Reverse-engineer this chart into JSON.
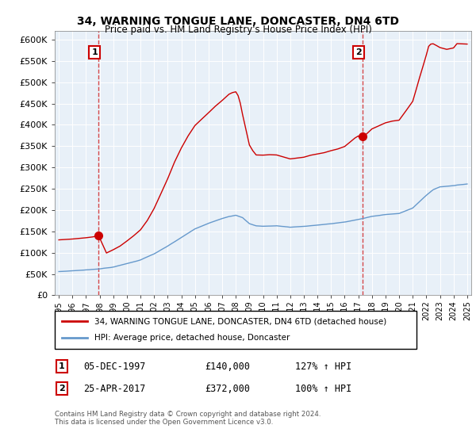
{
  "title": "34, WARNING TONGUE LANE, DONCASTER, DN4 6TD",
  "subtitle": "Price paid vs. HM Land Registry's House Price Index (HPI)",
  "legend_line1": "34, WARNING TONGUE LANE, DONCASTER, DN4 6TD (detached house)",
  "legend_line2": "HPI: Average price, detached house, Doncaster",
  "annotation1_date": "05-DEC-1997",
  "annotation1_price": "£140,000",
  "annotation1_hpi": "127% ↑ HPI",
  "annotation2_date": "25-APR-2017",
  "annotation2_price": "£372,000",
  "annotation2_hpi": "100% ↑ HPI",
  "footer": "Contains HM Land Registry data © Crown copyright and database right 2024.\nThis data is licensed under the Open Government Licence v3.0.",
  "red_color": "#cc0000",
  "blue_color": "#6699cc",
  "bg_color": "#e8f0f8",
  "ylim": [
    0,
    620000
  ],
  "yticks": [
    0,
    50000,
    100000,
    150000,
    200000,
    250000,
    300000,
    350000,
    400000,
    450000,
    500000,
    550000,
    600000
  ],
  "ytick_labels": [
    "£0",
    "£50K",
    "£100K",
    "£150K",
    "£200K",
    "£250K",
    "£300K",
    "£350K",
    "£400K",
    "£450K",
    "£500K",
    "£550K",
    "£600K"
  ],
  "sale1_x": 1997.92,
  "sale1_y": 140000,
  "sale2_x": 2017.31,
  "sale2_y": 372000,
  "xmin": 1994.7,
  "xmax": 2025.3,
  "hpi_years": [
    1995.0,
    1995.08,
    1995.17,
    1995.25,
    1995.33,
    1995.42,
    1995.5,
    1995.58,
    1995.67,
    1995.75,
    1995.83,
    1995.92,
    1996.0,
    1996.08,
    1996.17,
    1996.25,
    1996.33,
    1996.42,
    1996.5,
    1996.58,
    1996.67,
    1996.75,
    1996.83,
    1996.92,
    1997.0,
    1997.08,
    1997.17,
    1997.25,
    1997.33,
    1997.42,
    1997.5,
    1997.58,
    1997.67,
    1997.75,
    1997.83,
    1997.92,
    1998.0,
    1998.08,
    1998.17,
    1998.25,
    1998.33,
    1998.42,
    1998.5,
    1998.58,
    1998.67,
    1998.75,
    1998.83,
    1998.92,
    1999.0,
    1999.08,
    1999.17,
    1999.25,
    1999.33,
    1999.42,
    1999.5,
    1999.58,
    1999.67,
    1999.75,
    1999.83,
    1999.92,
    2000.0,
    2000.08,
    2000.17,
    2000.25,
    2000.33,
    2000.42,
    2000.5,
    2000.58,
    2000.67,
    2000.75,
    2000.83,
    2000.92,
    2001.0,
    2001.08,
    2001.17,
    2001.25,
    2001.33,
    2001.42,
    2001.5,
    2001.58,
    2001.67,
    2001.75,
    2001.83,
    2001.92,
    2002.0,
    2002.08,
    2002.17,
    2002.25,
    2002.33,
    2002.42,
    2002.5,
    2002.58,
    2002.67,
    2002.75,
    2002.83,
    2002.92,
    2003.0,
    2003.08,
    2003.17,
    2003.25,
    2003.33,
    2003.42,
    2003.5,
    2003.58,
    2003.67,
    2003.75,
    2003.83,
    2003.92,
    2004.0,
    2004.08,
    2004.17,
    2004.25,
    2004.33,
    2004.42,
    2004.5,
    2004.58,
    2004.67,
    2004.75,
    2004.83,
    2004.92,
    2005.0,
    2005.08,
    2005.17,
    2005.25,
    2005.33,
    2005.42,
    2005.5,
    2005.58,
    2005.67,
    2005.75,
    2005.83,
    2005.92,
    2006.0,
    2006.08,
    2006.17,
    2006.25,
    2006.33,
    2006.42,
    2006.5,
    2006.58,
    2006.67,
    2006.75,
    2006.83,
    2006.92,
    2007.0,
    2007.08,
    2007.17,
    2007.25,
    2007.33,
    2007.42,
    2007.5,
    2007.58,
    2007.67,
    2007.75,
    2007.83,
    2007.92,
    2008.0,
    2008.08,
    2008.17,
    2008.25,
    2008.33,
    2008.42,
    2008.5,
    2008.58,
    2008.67,
    2008.75,
    2008.83,
    2008.92,
    2009.0,
    2009.08,
    2009.17,
    2009.25,
    2009.33,
    2009.42,
    2009.5,
    2009.58,
    2009.67,
    2009.75,
    2009.83,
    2009.92,
    2010.0,
    2010.08,
    2010.17,
    2010.25,
    2010.33,
    2010.42,
    2010.5,
    2010.58,
    2010.67,
    2010.75,
    2010.83,
    2010.92,
    2011.0,
    2011.08,
    2011.17,
    2011.25,
    2011.33,
    2011.42,
    2011.5,
    2011.58,
    2011.67,
    2011.75,
    2011.83,
    2011.92,
    2012.0,
    2012.08,
    2012.17,
    2012.25,
    2012.33,
    2012.42,
    2012.5,
    2012.58,
    2012.67,
    2012.75,
    2012.83,
    2012.92,
    2013.0,
    2013.08,
    2013.17,
    2013.25,
    2013.33,
    2013.42,
    2013.5,
    2013.58,
    2013.67,
    2013.75,
    2013.83,
    2013.92,
    2014.0,
    2014.08,
    2014.17,
    2014.25,
    2014.33,
    2014.42,
    2014.5,
    2014.58,
    2014.67,
    2014.75,
    2014.83,
    2014.92,
    2015.0,
    2015.08,
    2015.17,
    2015.25,
    2015.33,
    2015.42,
    2015.5,
    2015.58,
    2015.67,
    2015.75,
    2015.83,
    2015.92,
    2016.0,
    2016.08,
    2016.17,
    2016.25,
    2016.33,
    2016.42,
    2016.5,
    2016.58,
    2016.67,
    2016.75,
    2016.83,
    2016.92,
    2017.0,
    2017.08,
    2017.17,
    2017.25,
    2017.31,
    2017.42,
    2017.5,
    2017.58,
    2017.67,
    2017.75,
    2017.83,
    2017.92,
    2018.0,
    2018.08,
    2018.17,
    2018.25,
    2018.33,
    2018.42,
    2018.5,
    2018.58,
    2018.67,
    2018.75,
    2018.83,
    2018.92,
    2019.0,
    2019.08,
    2019.17,
    2019.25,
    2019.33,
    2019.42,
    2019.5,
    2019.58,
    2019.67,
    2019.75,
    2019.83,
    2019.92,
    2020.0,
    2020.08,
    2020.17,
    2020.25,
    2020.33,
    2020.42,
    2020.5,
    2020.58,
    2020.67,
    2020.75,
    2020.83,
    2020.92,
    2021.0,
    2021.08,
    2021.17,
    2021.25,
    2021.33,
    2021.42,
    2021.5,
    2021.58,
    2021.67,
    2021.75,
    2021.83,
    2021.92,
    2022.0,
    2022.08,
    2022.17,
    2022.25,
    2022.33,
    2022.42,
    2022.5,
    2022.58,
    2022.67,
    2022.75,
    2022.83,
    2022.92,
    2023.0,
    2023.08,
    2023.17,
    2023.25,
    2023.33,
    2023.42,
    2023.5,
    2023.58,
    2023.67,
    2023.75,
    2023.83,
    2023.92,
    2024.0,
    2024.08,
    2024.17,
    2024.25,
    2024.33,
    2024.42,
    2024.5,
    2024.58,
    2024.67,
    2024.75,
    2024.83,
    2024.92,
    2025.0
  ]
}
